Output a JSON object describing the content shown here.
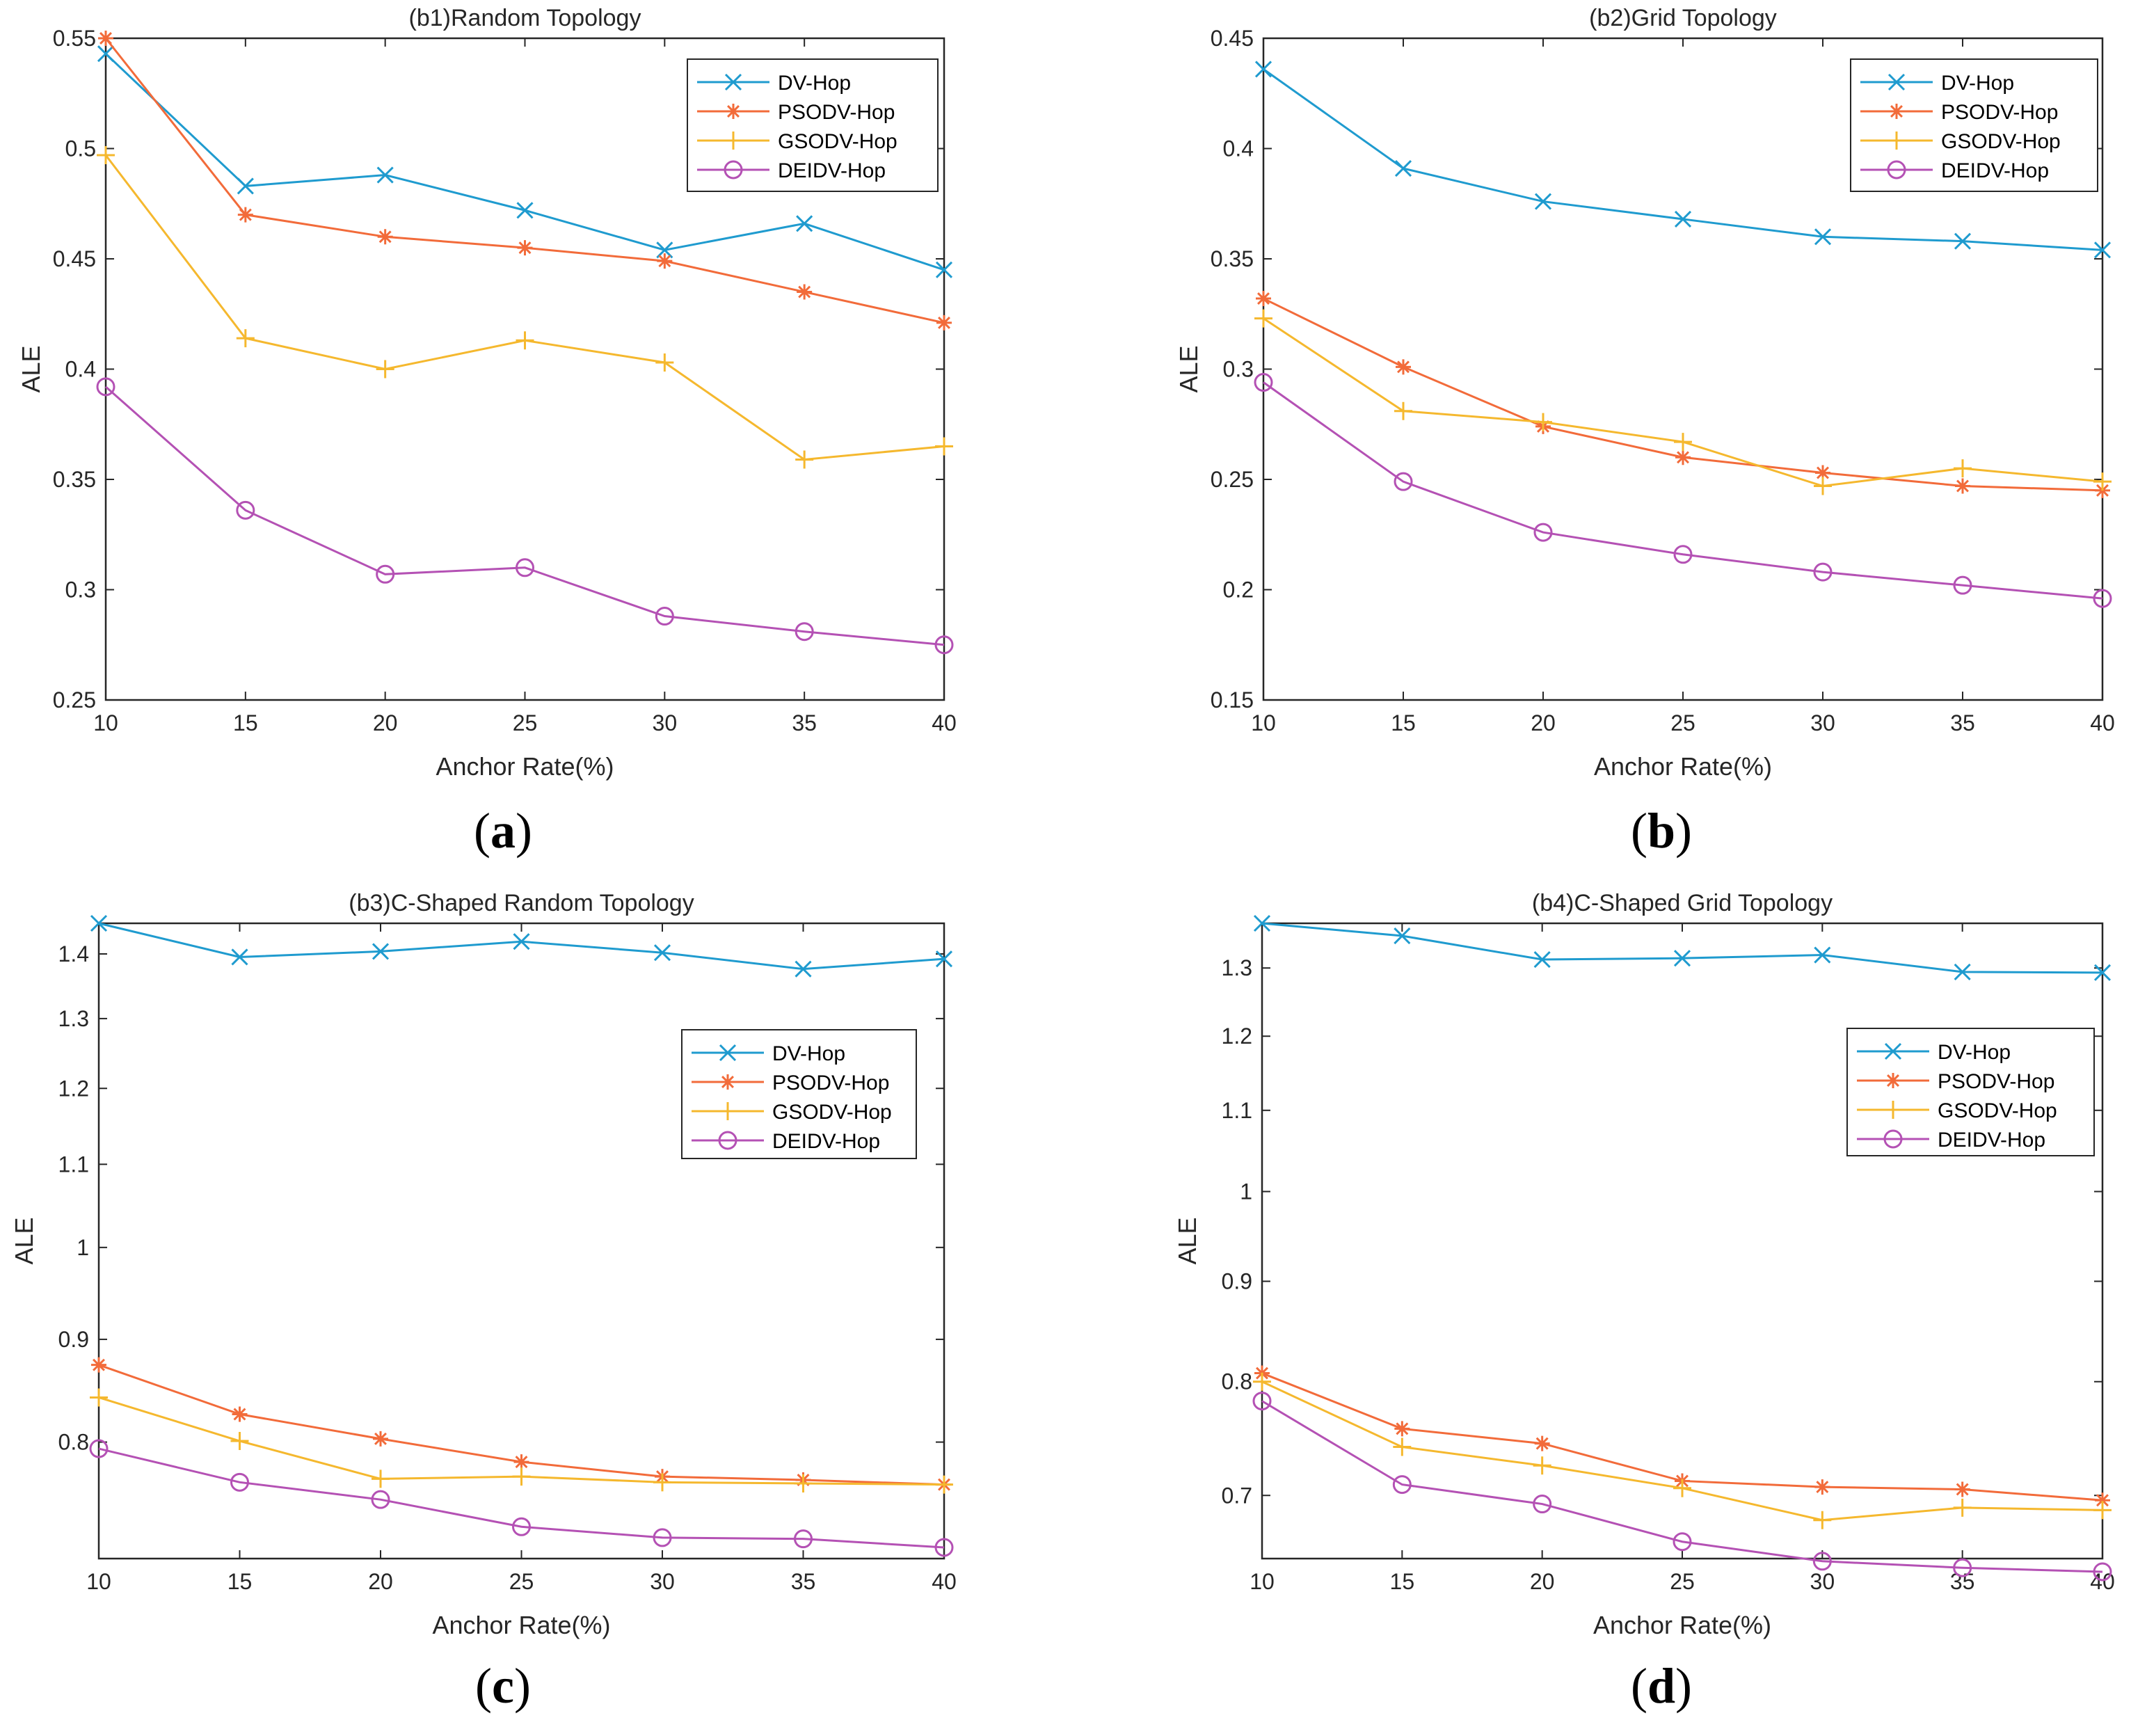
{
  "chart_data": [
    {
      "id": "a",
      "type": "line",
      "caption": "a",
      "title": "(b1)Random Topology",
      "xlabel": "Anchor Rate(%)",
      "ylabel": "ALE",
      "x": [
        10,
        15,
        20,
        25,
        30,
        35,
        40
      ],
      "xticks": [
        "10",
        "15",
        "20",
        "25",
        "30",
        "35",
        "40"
      ],
      "xlim": [
        10,
        40
      ],
      "ylim": [
        0.25,
        0.55
      ],
      "yticks": [
        0.25,
        0.3,
        0.35,
        0.4,
        0.45,
        0.5,
        0.55
      ],
      "ytick_labels": [
        "0.25",
        "0.3",
        "0.35",
        "0.4",
        "0.45",
        "0.5",
        "0.55"
      ],
      "legend_position": "top-right",
      "series": [
        {
          "name": "DV-Hop",
          "values": [
            0.543,
            0.483,
            0.488,
            0.472,
            0.454,
            0.466,
            0.445
          ]
        },
        {
          "name": "PSODV-Hop",
          "values": [
            0.55,
            0.47,
            0.46,
            0.455,
            0.449,
            0.435,
            0.421
          ]
        },
        {
          "name": "GSODV-Hop",
          "values": [
            0.497,
            0.414,
            0.4,
            0.413,
            0.403,
            0.359,
            0.365
          ]
        },
        {
          "name": "DEIDV-Hop",
          "values": [
            0.392,
            0.336,
            0.307,
            0.31,
            0.288,
            0.281,
            0.275
          ]
        }
      ]
    },
    {
      "id": "b",
      "type": "line",
      "caption": "b",
      "title": "(b2)Grid Topology",
      "xlabel": "Anchor Rate(%)",
      "ylabel": "ALE",
      "x": [
        10,
        15,
        20,
        25,
        30,
        35,
        40
      ],
      "xticks": [
        "10",
        "15",
        "20",
        "25",
        "30",
        "35",
        "40"
      ],
      "xlim": [
        10,
        40
      ],
      "ylim": [
        0.15,
        0.45
      ],
      "yticks": [
        0.15,
        0.2,
        0.25,
        0.3,
        0.35,
        0.4,
        0.45
      ],
      "ytick_labels": [
        "0.15",
        "0.2",
        "0.25",
        "0.3",
        "0.35",
        "0.4",
        "0.45"
      ],
      "legend_position": "top-right",
      "series": [
        {
          "name": "DV-Hop",
          "values": [
            0.436,
            0.391,
            0.376,
            0.368,
            0.36,
            0.358,
            0.354
          ]
        },
        {
          "name": "PSODV-Hop",
          "values": [
            0.332,
            0.301,
            0.274,
            0.26,
            0.253,
            0.247,
            0.245
          ]
        },
        {
          "name": "GSODV-Hop",
          "values": [
            0.323,
            0.281,
            0.276,
            0.267,
            0.247,
            0.255,
            0.249
          ]
        },
        {
          "name": "DEIDV-Hop",
          "values": [
            0.294,
            0.249,
            0.226,
            0.216,
            0.208,
            0.202,
            0.196
          ]
        }
      ]
    },
    {
      "id": "c",
      "type": "line",
      "caption": "c",
      "title": "(b3)C-Shaped Random Topology",
      "xlabel": "Anchor Rate(%)",
      "ylabel": "ALE",
      "x": [
        10,
        15,
        20,
        25,
        30,
        35,
        40
      ],
      "xticks": [
        "10",
        "15",
        "20",
        "25",
        "30",
        "35",
        "40"
      ],
      "xlim": [
        10,
        40
      ],
      "ylim": [
        0.7,
        1.45
      ],
      "yscale": "log",
      "yticks": [
        0.8,
        0.9,
        1.0,
        1.1,
        1.2,
        1.3,
        1.4
      ],
      "ytick_labels": [
        "0.8",
        "0.9",
        "1",
        "1.1",
        "1.2",
        "1.3",
        "1.4"
      ],
      "legend_position": "center-right",
      "series": [
        {
          "name": "DV-Hop",
          "values": [
            1.45,
            1.395,
            1.404,
            1.42,
            1.402,
            1.376,
            1.392
          ]
        },
        {
          "name": "PSODV-Hop",
          "values": [
            0.874,
            0.826,
            0.803,
            0.782,
            0.769,
            0.766,
            0.762
          ]
        },
        {
          "name": "GSODV-Hop",
          "values": [
            0.842,
            0.801,
            0.767,
            0.769,
            0.764,
            0.763,
            0.762
          ]
        },
        {
          "name": "DEIDV-Hop",
          "values": [
            0.794,
            0.764,
            0.749,
            0.726,
            0.717,
            0.716,
            0.709
          ]
        }
      ]
    },
    {
      "id": "d",
      "type": "line",
      "caption": "d",
      "title": "(b4)C-Shaped Grid Topology",
      "xlabel": "Anchor Rate(%)",
      "ylabel": "ALE",
      "x": [
        10,
        15,
        20,
        25,
        30,
        35,
        40
      ],
      "xticks": [
        "10",
        "15",
        "20",
        "25",
        "30",
        "35",
        "40"
      ],
      "xlim": [
        10,
        40
      ],
      "ylim": [
        0.65,
        1.37
      ],
      "yscale": "log",
      "yticks": [
        0.7,
        0.8,
        0.9,
        1.0,
        1.1,
        1.2,
        1.3
      ],
      "ytick_labels": [
        "0.7",
        "0.8",
        "0.9",
        "1",
        "1.1",
        "1.2",
        "1.3"
      ],
      "legend_position": "center-right",
      "series": [
        {
          "name": "DV-Hop",
          "values": [
            1.37,
            1.35,
            1.313,
            1.315,
            1.32,
            1.294,
            1.293
          ]
        },
        {
          "name": "PSODV-Hop",
          "values": [
            0.808,
            0.757,
            0.744,
            0.712,
            0.707,
            0.705,
            0.696
          ]
        },
        {
          "name": "GSODV-Hop",
          "values": [
            0.8,
            0.741,
            0.725,
            0.706,
            0.68,
            0.69,
            0.688
          ]
        },
        {
          "name": "DEIDV-Hop",
          "values": [
            0.782,
            0.709,
            0.693,
            0.663,
            0.648,
            0.643,
            0.64
          ]
        }
      ]
    }
  ],
  "series_styles": [
    {
      "name": "DV-Hop",
      "color": "#1f9bcf",
      "marker": "x"
    },
    {
      "name": "PSODV-Hop",
      "color": "#f26b3a",
      "marker": "asterisk"
    },
    {
      "name": "GSODV-Hop",
      "color": "#f5b82e",
      "marker": "plus"
    },
    {
      "name": "DEIDV-Hop",
      "color": "#b451b4",
      "marker": "circle"
    }
  ]
}
